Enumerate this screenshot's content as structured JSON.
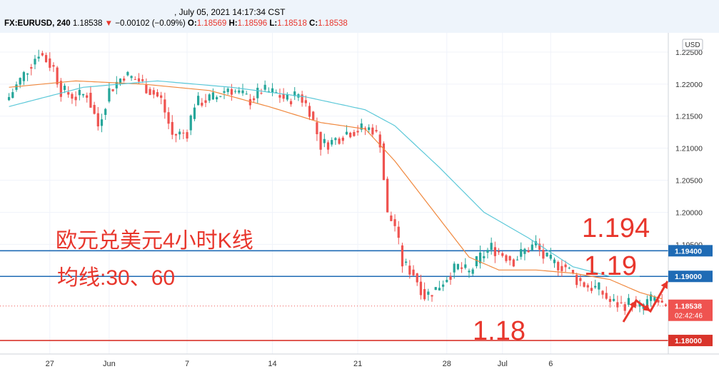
{
  "header": {
    "timestamp": ", July 05, 2021 14:17:34 CST",
    "symbol": "FX:EURUSD, 240",
    "last": "1.18538",
    "change_arrow": "▼",
    "change": "−0.00102 (−0.09%)",
    "o_label": "O:",
    "o_value": "1.18569",
    "h_label": "H:",
    "h_value": "1.18596",
    "l_label": "L:",
    "l_value": "1.18518",
    "c_label": "C:",
    "c_value": "1.18538"
  },
  "currency_badge": "USD",
  "annotations": {
    "title": "欧元兑美元4小时K线",
    "ma": "均线:30、60",
    "level_1194": "1.194",
    "level_119": "1.19",
    "level_118": "1.18"
  },
  "colors": {
    "up": "#26a69a",
    "down": "#ef5350",
    "ma30": "#f0883e",
    "ma60": "#5bc8d8",
    "hline_blue": "#1f6bb5",
    "hline_red": "#d9342b",
    "annotation": "#e8362c"
  },
  "chart_data": {
    "type": "candlestick",
    "ylim": [
      1.178,
      1.228
    ],
    "y_ticks": [
      "1.22500",
      "1.22000",
      "1.21500",
      "1.21000",
      "1.20500",
      "1.20000",
      "1.19500"
    ],
    "x_ticks": [
      "27",
      "Jun",
      "7",
      "14",
      "21",
      "28",
      "Jul",
      "6"
    ],
    "ma_periods": [
      30,
      60
    ],
    "horizontal_lines": [
      {
        "value": 1.194,
        "label": "1.19400"
      },
      {
        "value": 1.19,
        "label": "1.19000"
      },
      {
        "value": 1.18,
        "label": "1.18000"
      }
    ],
    "last_price": {
      "value": 1.18538,
      "label": "1.18538",
      "countdown": "02:42:46"
    },
    "anchors": [
      [
        0,
        1.218
      ],
      [
        4,
        1.2215
      ],
      [
        8,
        1.225
      ],
      [
        12,
        1.2225
      ],
      [
        14,
        1.219
      ],
      [
        18,
        1.218
      ],
      [
        21,
        1.2185
      ],
      [
        24,
        1.2135
      ],
      [
        27,
        1.219
      ],
      [
        31,
        1.2215
      ],
      [
        35,
        1.2205
      ],
      [
        39,
        1.2185
      ],
      [
        41,
        1.2175
      ],
      [
        44,
        1.212
      ],
      [
        48,
        1.2125
      ],
      [
        50,
        1.217
      ],
      [
        53,
        1.2175
      ],
      [
        56,
        1.218
      ],
      [
        59,
        1.2195
      ],
      [
        62,
        1.2185
      ],
      [
        65,
        1.2175
      ],
      [
        68,
        1.219
      ],
      [
        72,
        1.2185
      ],
      [
        75,
        1.2175
      ],
      [
        78,
        1.2185
      ],
      [
        81,
        1.216
      ],
      [
        84,
        1.2105
      ],
      [
        87,
        1.211
      ],
      [
        91,
        1.2125
      ],
      [
        95,
        1.213
      ],
      [
        98,
        1.213
      ],
      [
        100,
        1.211
      ],
      [
        102,
        1.1995
      ],
      [
        104,
        1.198
      ],
      [
        106,
        1.192
      ],
      [
        109,
        1.1905
      ],
      [
        112,
        1.187
      ],
      [
        115,
        1.188
      ],
      [
        118,
        1.19
      ],
      [
        121,
        1.1915
      ],
      [
        124,
        1.1905
      ],
      [
        127,
        1.193
      ],
      [
        130,
        1.1945
      ],
      [
        133,
        1.1935
      ],
      [
        136,
        1.1925
      ],
      [
        139,
        1.194
      ],
      [
        142,
        1.195
      ],
      [
        144,
        1.193
      ],
      [
        147,
        1.192
      ],
      [
        150,
        1.1915
      ],
      [
        153,
        1.1895
      ],
      [
        156,
        1.1885
      ],
      [
        159,
        1.188
      ],
      [
        162,
        1.186
      ],
      [
        165,
        1.1855
      ],
      [
        168,
        1.186
      ],
      [
        170,
        1.185
      ],
      [
        172,
        1.186
      ],
      [
        174,
        1.1865
      ],
      [
        176,
        1.1854
      ]
    ],
    "ma30_anchors": [
      [
        0,
        1.2195
      ],
      [
        18,
        1.2205
      ],
      [
        36,
        1.22
      ],
      [
        54,
        1.219
      ],
      [
        70,
        1.2165
      ],
      [
        84,
        1.214
      ],
      [
        96,
        1.213
      ],
      [
        104,
        1.208
      ],
      [
        116,
        1.199
      ],
      [
        124,
        1.193
      ],
      [
        132,
        1.191
      ],
      [
        142,
        1.191
      ],
      [
        152,
        1.1905
      ],
      [
        162,
        1.1895
      ],
      [
        170,
        1.1875
      ],
      [
        176,
        1.1865
      ]
    ],
    "ma60_anchors": [
      [
        0,
        1.2165
      ],
      [
        20,
        1.2195
      ],
      [
        40,
        1.2205
      ],
      [
        60,
        1.2195
      ],
      [
        80,
        1.218
      ],
      [
        96,
        1.216
      ],
      [
        104,
        1.2135
      ],
      [
        116,
        1.207
      ],
      [
        128,
        1.2
      ],
      [
        140,
        1.196
      ],
      [
        152,
        1.1915
      ],
      [
        162,
        1.19
      ],
      [
        170,
        1.19
      ]
    ]
  }
}
